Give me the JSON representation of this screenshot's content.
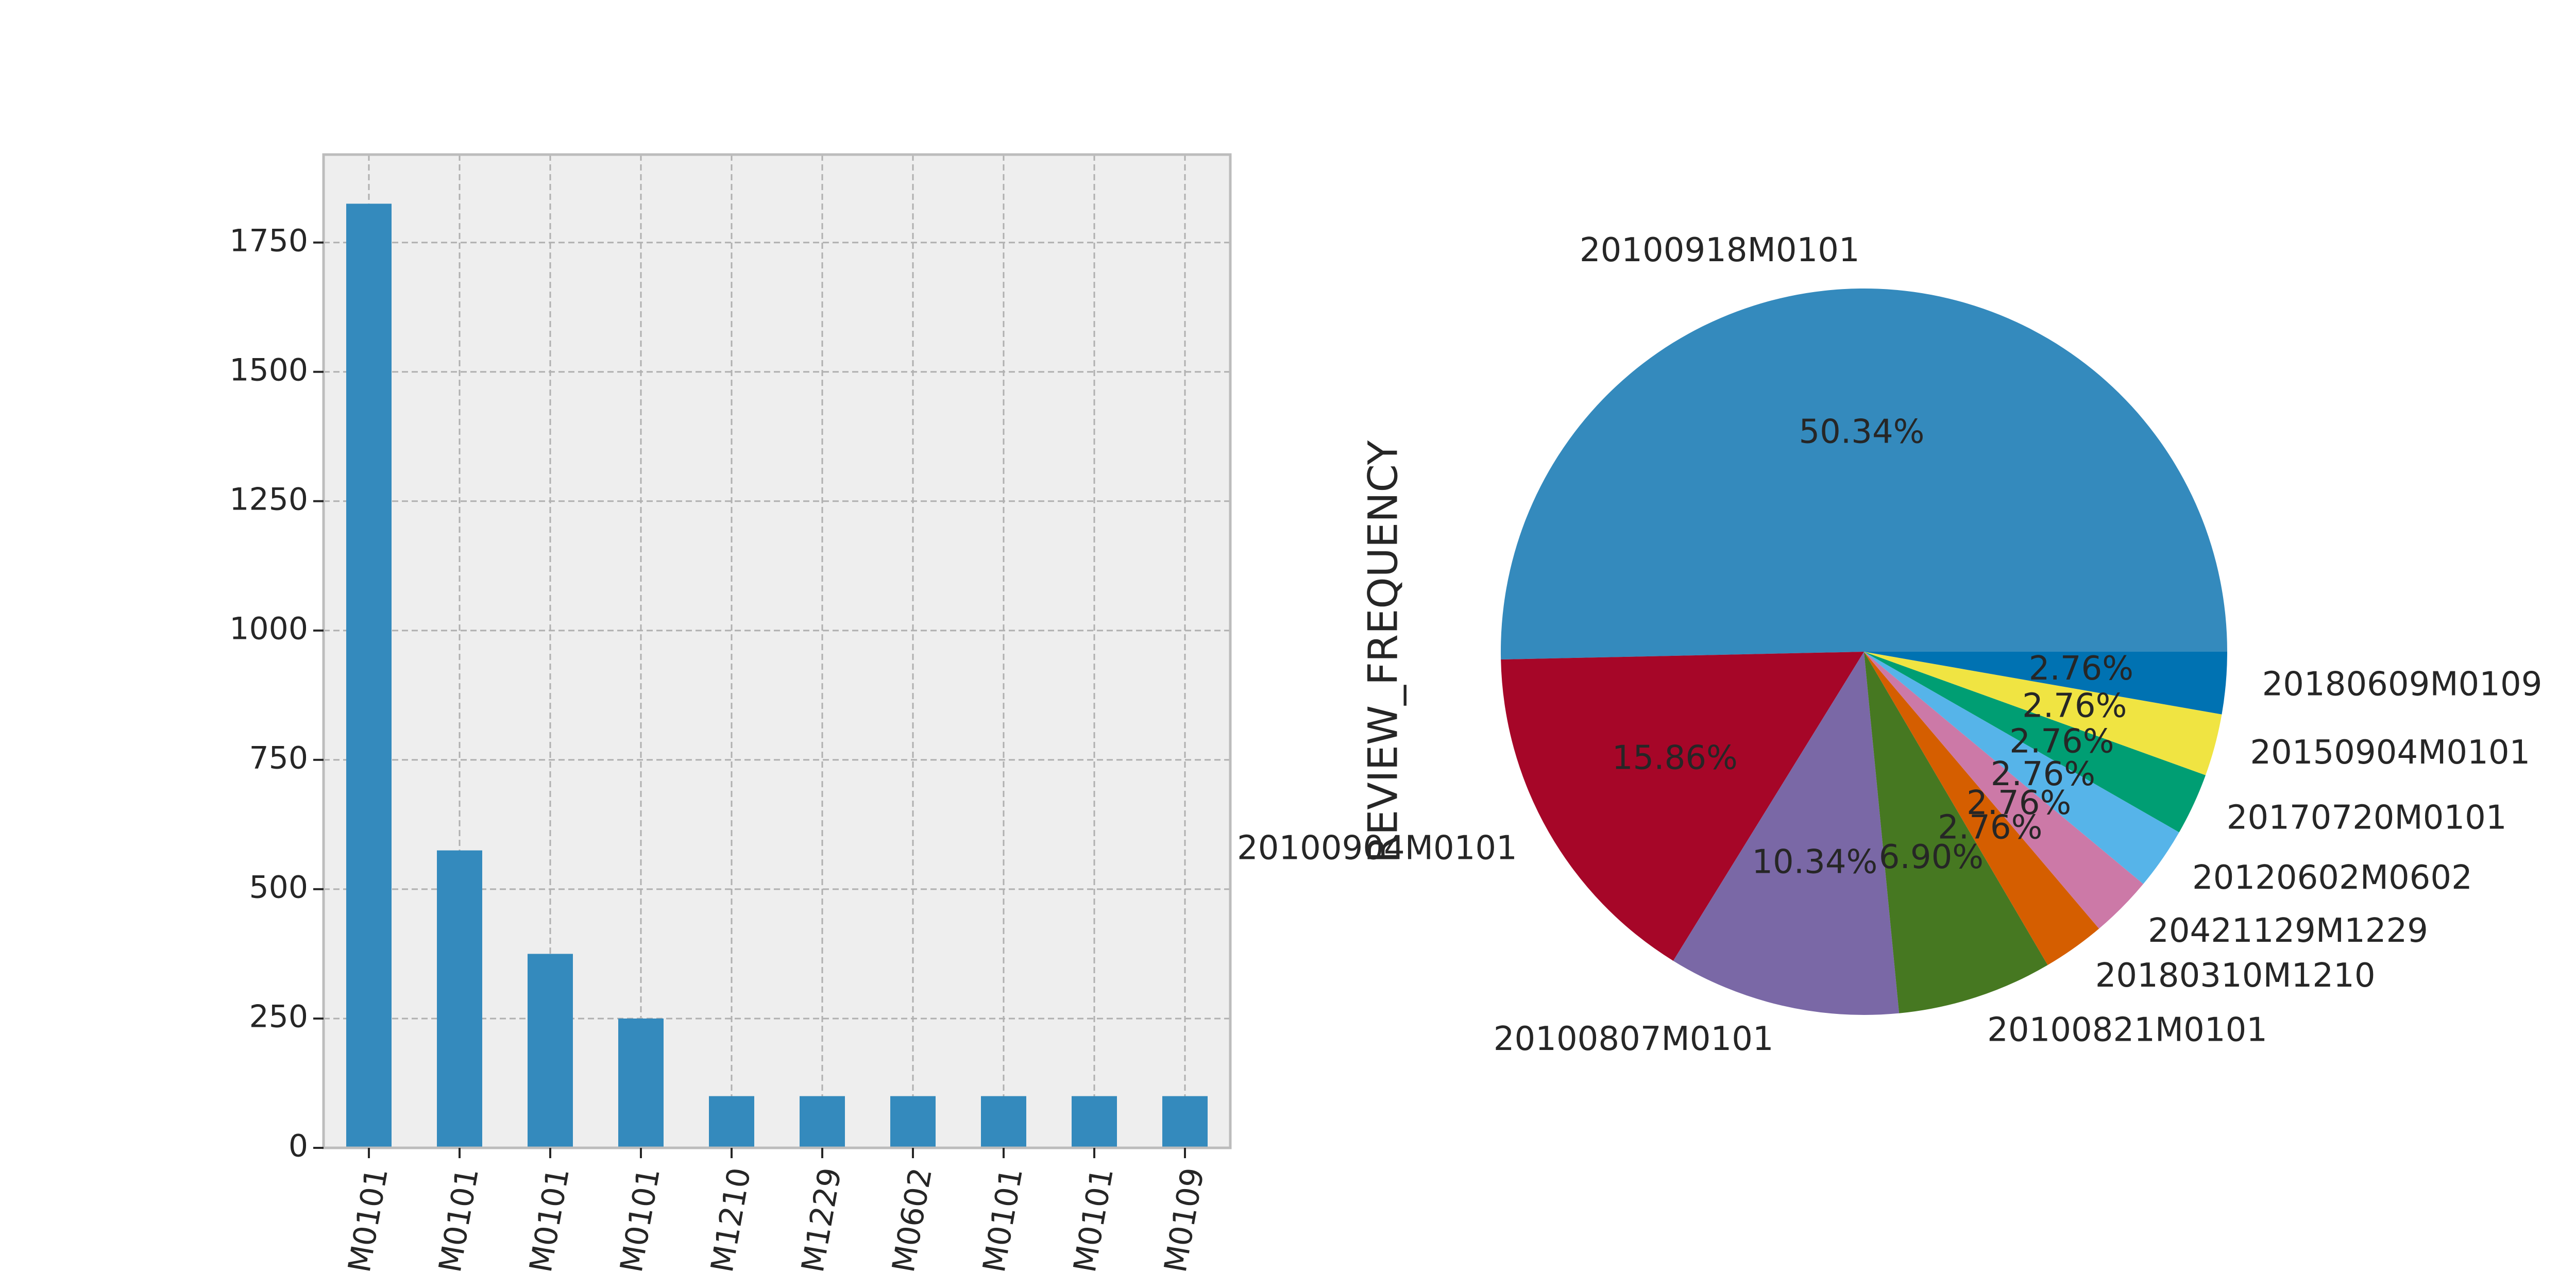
{
  "chart_data": [
    {
      "type": "bar",
      "categories": [
        "20100918M0101",
        "20100904M0101",
        "20100807M0101",
        "20100821M0101",
        "20180310M1210",
        "20421129M1229",
        "20120602M0602",
        "20170720M0101",
        "20150904M0101",
        "20180609M0109"
      ],
      "tick_labels_visible": [
        "M0101",
        "M0101",
        "M0101",
        "M0101",
        "M1210",
        "M1229",
        "M0602",
        "M0101",
        "M0101",
        "M0109"
      ],
      "values": [
        1825,
        575,
        375,
        250,
        100,
        100,
        100,
        100,
        100,
        100
      ],
      "yticks": [
        "0",
        "250",
        "500",
        "750",
        "1000",
        "1250",
        "1500",
        "1750"
      ],
      "ylim": [
        0,
        1920
      ],
      "grid": true,
      "colors": {
        "bar": "#348abd",
        "background": "#eeeeee",
        "grid": "#b0b0b0",
        "frame": "#bcbcbc"
      }
    },
    {
      "type": "pie",
      "ylabel": "REVIEW_FREQUENCY",
      "slices": [
        {
          "label": "20100918M0101",
          "value": 50.34,
          "pct": "50.34%",
          "color": "#348abd"
        },
        {
          "label": "20100904M0101",
          "value": 15.86,
          "pct": "15.86%",
          "color": "#a60628"
        },
        {
          "label": "20100807M0101",
          "value": 10.34,
          "pct": "10.34%",
          "color": "#7a68a6"
        },
        {
          "label": "20100821M0101",
          "value": 6.9,
          "pct": "6.90%",
          "color": "#467821"
        },
        {
          "label": "20180310M1210",
          "value": 2.76,
          "pct": "2.76%",
          "color": "#d55e00"
        },
        {
          "label": "20421129M1229",
          "value": 2.76,
          "pct": "2.76%",
          "color": "#cc79a7"
        },
        {
          "label": "20120602M0602",
          "value": 2.76,
          "pct": "2.76%",
          "color": "#56b4e9"
        },
        {
          "label": "20170720M0101",
          "value": 2.76,
          "pct": "2.76%",
          "color": "#009e73"
        },
        {
          "label": "20150904M0101",
          "value": 2.76,
          "pct": "2.76%",
          "color": "#f0e442"
        },
        {
          "label": "20180609M0109",
          "value": 2.76,
          "pct": "2.76%",
          "color": "#0072b2"
        }
      ],
      "start_angle": 0,
      "direction": "clockwise-on-screen"
    }
  ]
}
